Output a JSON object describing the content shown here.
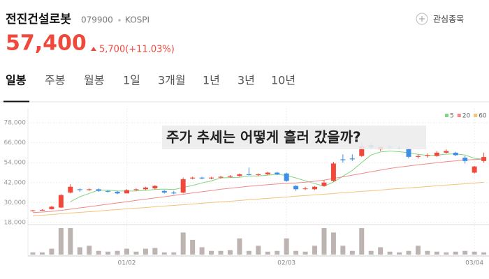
{
  "stock": {
    "name": "전진건설로봇",
    "code": "079900",
    "market": "KOSPI",
    "price": "57,400",
    "change": "5,700(+11.03%)"
  },
  "favorite": "관심종목",
  "tabs": [
    "일봉",
    "주봉",
    "월봉",
    "1일",
    "3개월",
    "1년",
    "3년",
    "10년"
  ],
  "chart_data": {
    "type": "candlestick",
    "annotation": "주가 추세는 어떻게 흘러 갔을까?",
    "categories": [
      null,
      null,
      null,
      null,
      null,
      null,
      null,
      null,
      null,
      null,
      "01/02",
      null,
      null,
      null,
      null,
      null,
      null,
      null,
      null,
      null,
      null,
      null,
      null,
      null,
      null,
      null,
      null,
      "02/03",
      null,
      null,
      null,
      null,
      null,
      null,
      null,
      null,
      null,
      null,
      null,
      null,
      null,
      null,
      null,
      null,
      null,
      null,
      null,
      "03/04",
      null
    ],
    "open": [
      25000,
      25300,
      26000,
      27000,
      36000,
      38000,
      37500,
      38000,
      37000,
      36500,
      35500,
      37500,
      38000,
      38500,
      37000,
      36000,
      36000,
      44500,
      45000,
      44500,
      45000,
      45500,
      46000,
      47000,
      46500,
      47000,
      48000,
      47500,
      40000,
      38500,
      38000,
      40000,
      43000,
      56000,
      56500,
      58000,
      64500,
      62000,
      63500,
      63000,
      62500,
      57500,
      58000,
      58000,
      60000,
      60000,
      57000,
      48000,
      55000
    ],
    "high": [
      25500,
      26000,
      28000,
      35000,
      41000,
      38500,
      38500,
      38500,
      37500,
      37000,
      38000,
      38500,
      39500,
      40500,
      37500,
      37000,
      45000,
      45500,
      45500,
      45500,
      46000,
      46500,
      47500,
      51000,
      47500,
      48500,
      48500,
      48000,
      40500,
      39500,
      40000,
      43500,
      54500,
      59000,
      59000,
      66500,
      65500,
      64000,
      64500,
      64000,
      63000,
      59000,
      59500,
      61000,
      62000,
      60500,
      58000,
      52000,
      60000
    ],
    "low": [
      24500,
      25000,
      25800,
      26800,
      35500,
      36500,
      37000,
      36500,
      36000,
      35000,
      35500,
      37000,
      37500,
      38000,
      35500,
      35000,
      35500,
      44000,
      44000,
      44000,
      44500,
      45000,
      45500,
      46500,
      46000,
      46500,
      46500,
      42500,
      37000,
      37500,
      37500,
      39500,
      42500,
      54000,
      55000,
      57500,
      62000,
      61000,
      62500,
      62000,
      56500,
      56500,
      57000,
      57500,
      59500,
      58000,
      53500,
      47500,
      54000
    ],
    "close": [
      25300,
      25600,
      27500,
      34500,
      39500,
      37500,
      38000,
      37000,
      36500,
      35500,
      37500,
      38000,
      39000,
      40000,
      36000,
      35500,
      44000,
      45000,
      44500,
      45000,
      45500,
      46000,
      47000,
      46500,
      47000,
      48000,
      47000,
      43000,
      38000,
      38500,
      39500,
      42000,
      53500,
      55500,
      56000,
      64000,
      63000,
      63500,
      63000,
      62500,
      57500,
      58000,
      58500,
      60000,
      61000,
      58500,
      55000,
      51700,
      57400
    ],
    "volume": [
      3,
      3,
      8,
      36,
      36,
      10,
      12,
      5,
      4,
      5,
      8,
      4,
      8,
      9,
      3,
      3,
      30,
      20,
      10,
      5,
      5,
      6,
      22,
      5,
      12,
      4,
      5,
      22,
      5,
      4,
      12,
      36,
      30,
      12,
      5,
      36,
      5,
      10,
      4,
      3,
      5,
      12,
      5,
      4,
      3,
      4,
      5,
      4,
      3
    ],
    "up_color": "#f0493c",
    "down_color": "#3e8ee6",
    "volume_color": "#bdb4b1",
    "ma": [
      {
        "name": "5",
        "color": "#7fd67f",
        "values": [
          null,
          null,
          null,
          null,
          30500,
          33500,
          35500,
          37500,
          37500,
          37000,
          36900,
          37000,
          37300,
          37900,
          38100,
          37800,
          39000,
          40300,
          41800,
          43000,
          44800,
          45000,
          45200,
          46000,
          46000,
          46500,
          47000,
          46300,
          44800,
          43100,
          41400,
          39900,
          42300,
          45800,
          49300,
          54100,
          58600,
          60400,
          61000,
          60600,
          59900,
          59000,
          58400,
          58500,
          59100,
          59300,
          58600,
          56600,
          56100
        ]
      },
      {
        "name": "20",
        "color": "#f08a8a",
        "values": [
          24000,
          24300,
          24700,
          25300,
          26000,
          26800,
          27500,
          28300,
          29000,
          29800,
          30500,
          31300,
          32000,
          32800,
          33500,
          34300,
          35000,
          35800,
          36500,
          37200,
          38000,
          38600,
          39200,
          39800,
          40300,
          40800,
          41200,
          41500,
          41800,
          42200,
          42800,
          43500,
          44500,
          45500,
          46500,
          47500,
          48500,
          49500,
          50500,
          51300,
          52000,
          52700,
          53300,
          54000,
          54600,
          55100,
          55600,
          55900,
          56200
        ]
      },
      {
        "name": "60",
        "color": "#f5c27a",
        "values": [
          22000,
          22400,
          22800,
          23300,
          23700,
          24100,
          24500,
          24900,
          25400,
          25800,
          26200,
          26600,
          27000,
          27500,
          27900,
          28300,
          28700,
          29100,
          29600,
          30000,
          30400,
          30800,
          31200,
          31700,
          32100,
          32500,
          32900,
          33300,
          33800,
          34200,
          34600,
          35000,
          35400,
          35900,
          36300,
          36700,
          37100,
          37500,
          38000,
          38400,
          38800,
          39200,
          39600,
          40100,
          40500,
          40900,
          41300,
          41700,
          42200
        ]
      }
    ],
    "ylim": [
      18000,
      78000
    ],
    "yticks": [
      {
        "value": 78000,
        "label": "78,000"
      },
      {
        "value": 66000,
        "label": "66,000"
      },
      {
        "value": 54000,
        "label": "54,000"
      },
      {
        "value": 42000,
        "label": "42,000"
      },
      {
        "value": 30000,
        "label": "30,000"
      },
      {
        "value": 18000,
        "label": "18,000"
      }
    ],
    "grid": true,
    "legend": "top-right"
  }
}
